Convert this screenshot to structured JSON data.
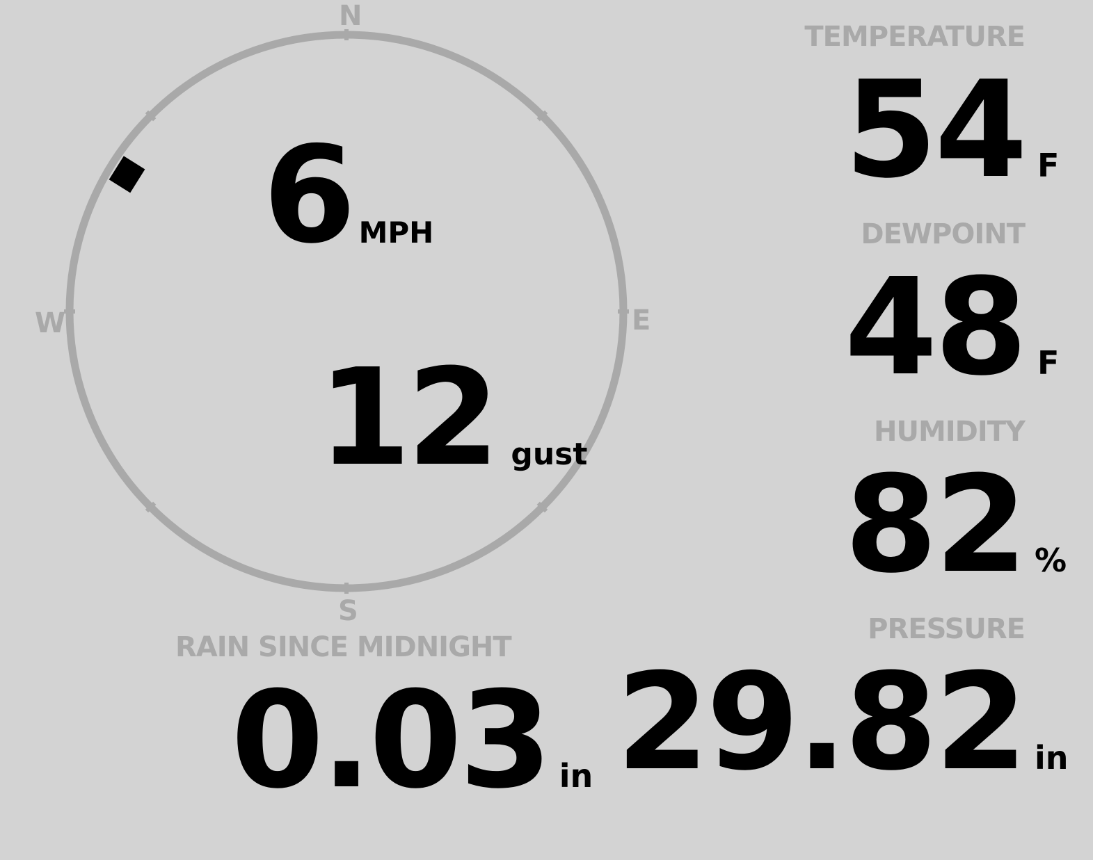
{
  "wind": {
    "speed": "6",
    "speed_unit": "MPH",
    "gust": "12",
    "gust_label": "gust",
    "direction_degrees": 302,
    "compass": {
      "north": "N",
      "east": "E",
      "south": "S",
      "west": "W"
    }
  },
  "temperature": {
    "label": "TEMPERATURE",
    "value": "54",
    "unit": "F"
  },
  "dewpoint": {
    "label": "DEWPOINT",
    "value": "48",
    "unit": "F"
  },
  "humidity": {
    "label": "HUMIDITY",
    "value": "82",
    "unit": "%"
  },
  "rain": {
    "label": "RAIN SINCE MIDNIGHT",
    "value": "0.03",
    "unit": "in"
  },
  "pressure": {
    "label": "PRESSURE",
    "value": "29.82",
    "unit": "in"
  },
  "colors": {
    "background": "#d3d3d3",
    "muted": "#a9a9a9",
    "text": "#000000"
  }
}
